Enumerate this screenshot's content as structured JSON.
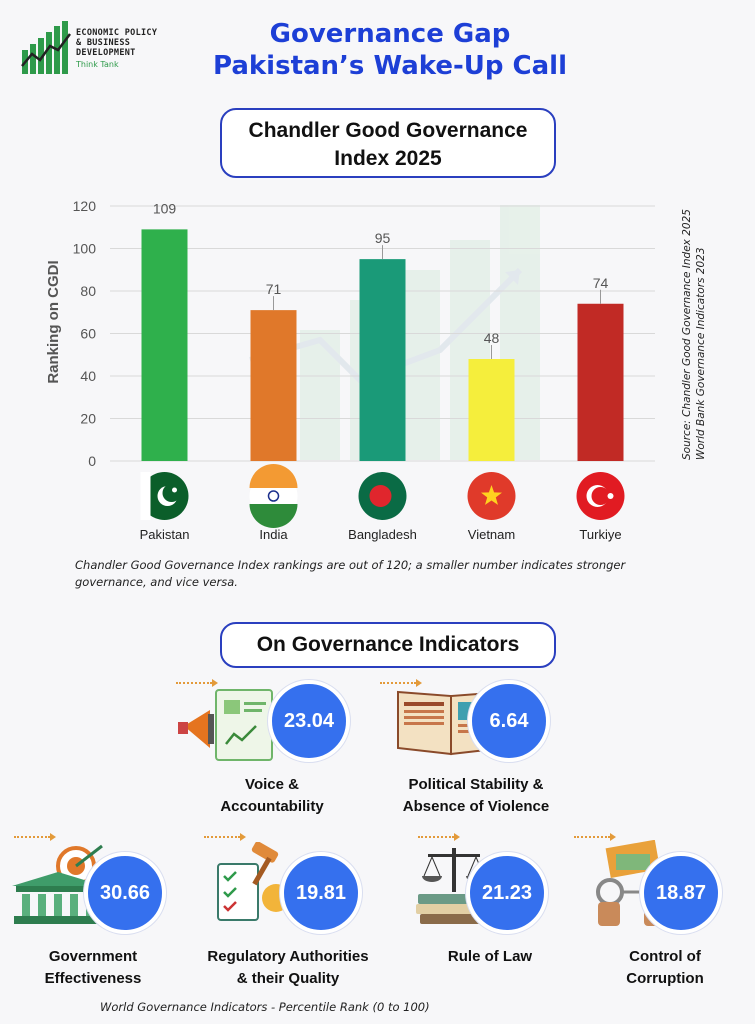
{
  "brand": {
    "line1": "ECONOMIC POLICY",
    "line2": "& BUSINESS",
    "line3": "DEVELOPMENT",
    "tag": "Think Tank"
  },
  "title_line1": "Governance Gap",
  "title_line2": "Pakistan’s Wake-Up Call",
  "chart_title_line1": "Chandler Good Governance",
  "chart_title_line2": "Index 2025",
  "source_line1": "Source:  Chandler Good Governance Index 2025",
  "source_line2": "World Bank Governance Indicators 2023",
  "note": "Chandler Good Governance Index rankings are out of 120; a smaller number indicates stronger governance, and vice versa.",
  "chart_data": {
    "type": "bar",
    "ylabel": "Ranking on CGDI",
    "ylim": [
      0,
      120
    ],
    "yticks": [
      0,
      20,
      40,
      60,
      80,
      100,
      120
    ],
    "grid": true,
    "categories": [
      "Pakistan",
      "India",
      "Bangladesh",
      "Vietnam",
      "Turkiye"
    ],
    "values": [
      109,
      71,
      95,
      48,
      74
    ],
    "colors": [
      "#2fb04c",
      "#e0782a",
      "#1a9a78",
      "#f5ee3c",
      "#c12a25"
    ],
    "flags": [
      "pakistan-flag-icon",
      "india-flag-icon",
      "bangladesh-flag-icon",
      "vietnam-flag-icon",
      "turkiye-flag-icon"
    ]
  },
  "indicators_title": "On Governance Indicators",
  "indicators": [
    {
      "label1": "Voice &",
      "label2": "Accountability",
      "value": "23.04",
      "icon": "megaphone-document-icon"
    },
    {
      "label1": "Political Stability &",
      "label2": "Absence of Violence",
      "value": "6.64",
      "icon": "newspaper-icon"
    },
    {
      "label1": "Government",
      "label2": "Effectiveness",
      "value": "30.66",
      "icon": "government-target-icon"
    },
    {
      "label1": "Regulatory Authorities",
      "label2": "& their Quality",
      "value": "19.81",
      "icon": "gavel-checklist-icon"
    },
    {
      "label1": "Rule of Law",
      "label2": "",
      "value": "21.23",
      "icon": "scales-books-icon"
    },
    {
      "label1": "Control of",
      "label2": "Corruption",
      "value": "18.87",
      "icon": "handcuffs-money-icon"
    }
  ],
  "footnote": "World Governance Indicators - Percentile Rank (0 to 100)"
}
